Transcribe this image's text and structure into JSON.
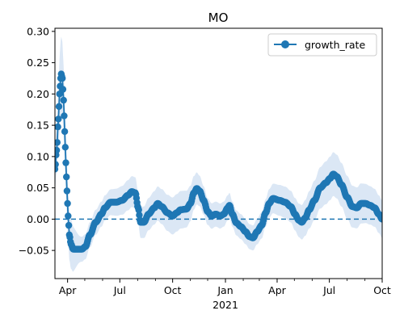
{
  "chart_data": {
    "type": "line",
    "title": "MO",
    "xlabel": "",
    "ylabel": "",
    "xlim": [
      "2020-03-10",
      "2021-10-01"
    ],
    "ylim": [
      -0.095,
      0.305
    ],
    "legend": {
      "placement": "top-right",
      "entries": [
        "growth_rate"
      ]
    },
    "grid": false,
    "colors": {
      "series": "#1f77b4",
      "band": "#dbe7f5",
      "zero_line": "#1f77b4"
    },
    "x_ticks": [
      {
        "date": "2020-04-01",
        "label": "Apr"
      },
      {
        "date": "2020-07-01",
        "label": "Jul"
      },
      {
        "date": "2020-10-01",
        "label": "Oct"
      },
      {
        "date": "2021-01-01",
        "label": "Jan",
        "sublabel": "2021"
      },
      {
        "date": "2021-04-01",
        "label": "Apr"
      },
      {
        "date": "2021-07-01",
        "label": "Jul"
      },
      {
        "date": "2021-10-01",
        "label": "Oct"
      }
    ],
    "x_minor_ticks": [
      "2020-05-01",
      "2020-06-01",
      "2020-08-01",
      "2020-09-01",
      "2020-11-01",
      "2020-12-01",
      "2021-02-01",
      "2021-03-01",
      "2021-05-01",
      "2021-06-01",
      "2021-08-01",
      "2021-09-01"
    ],
    "y_ticks": [
      -0.05,
      0.0,
      0.05,
      0.1,
      0.15,
      0.2,
      0.25,
      0.3
    ],
    "y_tick_labels": [
      "−0.05",
      "0.00",
      "0.05",
      "0.10",
      "0.15",
      "0.20",
      "0.25",
      "0.30"
    ],
    "reference_line": {
      "y": 0,
      "style": "dashed"
    },
    "series": [
      {
        "name": "growth_rate",
        "band_width": [
          [
            "2020-03-10",
            0.03
          ],
          [
            "2020-03-20",
            0.06
          ],
          [
            "2020-04-05",
            0.04
          ],
          [
            "2020-04-25",
            0.02
          ],
          [
            "2020-06-01",
            0.02
          ],
          [
            "2020-08-01",
            0.025
          ],
          [
            "2020-10-15",
            0.03
          ],
          [
            "2020-12-15",
            0.02
          ],
          [
            "2021-02-15",
            0.02
          ],
          [
            "2021-04-15",
            0.025
          ],
          [
            "2021-07-10",
            0.035
          ],
          [
            "2021-10-01",
            0.03
          ]
        ],
        "points": [
          [
            "2020-03-10",
            0.08
          ],
          [
            "2020-03-13",
            0.11
          ],
          [
            "2020-03-16",
            0.16
          ],
          [
            "2020-03-18",
            0.2
          ],
          [
            "2020-03-20",
            0.225
          ],
          [
            "2020-03-21",
            0.232
          ],
          [
            "2020-03-23",
            0.225
          ],
          [
            "2020-03-25",
            0.19
          ],
          [
            "2020-03-27",
            0.14
          ],
          [
            "2020-03-29",
            0.09
          ],
          [
            "2020-03-31",
            0.045
          ],
          [
            "2020-04-02",
            0.005
          ],
          [
            "2020-04-04",
            -0.025
          ],
          [
            "2020-04-07",
            -0.04
          ],
          [
            "2020-04-11",
            -0.048
          ],
          [
            "2020-04-18",
            -0.048
          ],
          [
            "2020-04-26",
            -0.048
          ],
          [
            "2020-05-02",
            -0.044
          ],
          [
            "2020-05-10",
            -0.025
          ],
          [
            "2020-05-20",
            -0.005
          ],
          [
            "2020-05-30",
            0.008
          ],
          [
            "2020-06-05",
            0.018
          ],
          [
            "2020-06-15",
            0.027
          ],
          [
            "2020-06-25",
            0.027
          ],
          [
            "2020-07-05",
            0.03
          ],
          [
            "2020-07-15",
            0.038
          ],
          [
            "2020-07-22",
            0.044
          ],
          [
            "2020-07-28",
            0.042
          ],
          [
            "2020-08-02",
            0.018
          ],
          [
            "2020-08-06",
            -0.005
          ],
          [
            "2020-08-12",
            -0.005
          ],
          [
            "2020-08-20",
            0.008
          ],
          [
            "2020-08-30",
            0.018
          ],
          [
            "2020-09-05",
            0.025
          ],
          [
            "2020-09-12",
            0.02
          ],
          [
            "2020-09-22",
            0.01
          ],
          [
            "2020-10-01",
            0.005
          ],
          [
            "2020-10-08",
            0.01
          ],
          [
            "2020-10-15",
            0.015
          ],
          [
            "2020-10-25",
            0.016
          ],
          [
            "2020-11-01",
            0.025
          ],
          [
            "2020-11-07",
            0.042
          ],
          [
            "2020-11-12",
            0.049
          ],
          [
            "2020-11-17",
            0.045
          ],
          [
            "2020-11-24",
            0.03
          ],
          [
            "2020-12-01",
            0.012
          ],
          [
            "2020-12-08",
            0.005
          ],
          [
            "2020-12-15",
            0.008
          ],
          [
            "2020-12-23",
            0.005
          ],
          [
            "2020-12-29",
            0.008
          ],
          [
            "2021-01-05",
            0.018
          ],
          [
            "2021-01-08",
            0.022
          ],
          [
            "2021-01-13",
            0.008
          ],
          [
            "2021-01-20",
            -0.006
          ],
          [
            "2021-01-28",
            -0.012
          ],
          [
            "2021-02-05",
            -0.02
          ],
          [
            "2021-02-12",
            -0.028
          ],
          [
            "2021-02-18",
            -0.03
          ],
          [
            "2021-02-25",
            -0.02
          ],
          [
            "2021-03-05",
            -0.01
          ],
          [
            "2021-03-12",
            0.01
          ],
          [
            "2021-03-18",
            0.025
          ],
          [
            "2021-03-25",
            0.033
          ],
          [
            "2021-04-05",
            0.03
          ],
          [
            "2021-04-15",
            0.027
          ],
          [
            "2021-04-25",
            0.02
          ],
          [
            "2021-05-02",
            0.008
          ],
          [
            "2021-05-09",
            -0.002
          ],
          [
            "2021-05-14",
            -0.005
          ],
          [
            "2021-05-20",
            0.002
          ],
          [
            "2021-05-27",
            0.015
          ],
          [
            "2021-06-05",
            0.03
          ],
          [
            "2021-06-15",
            0.05
          ],
          [
            "2021-06-25",
            0.058
          ],
          [
            "2021-07-02",
            0.065
          ],
          [
            "2021-07-08",
            0.072
          ],
          [
            "2021-07-14",
            0.068
          ],
          [
            "2021-07-22",
            0.055
          ],
          [
            "2021-08-01",
            0.035
          ],
          [
            "2021-08-10",
            0.02
          ],
          [
            "2021-08-18",
            0.018
          ],
          [
            "2021-08-25",
            0.025
          ],
          [
            "2021-09-02",
            0.025
          ],
          [
            "2021-09-10",
            0.022
          ],
          [
            "2021-09-18",
            0.018
          ],
          [
            "2021-09-25",
            0.008
          ],
          [
            "2021-10-01",
            0.0
          ]
        ]
      }
    ]
  }
}
